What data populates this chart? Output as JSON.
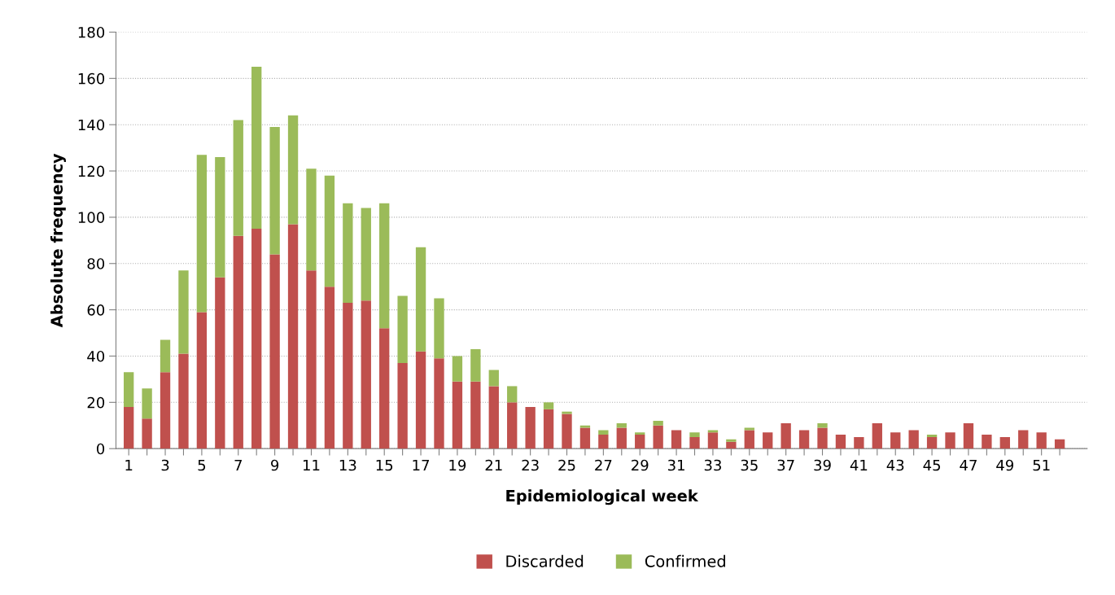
{
  "chart_data": {
    "type": "bar",
    "stacked": true,
    "xlabel": "Epidemiological week",
    "ylabel": "Absolute frequency",
    "categories": [
      "1",
      null,
      "3",
      null,
      "5",
      null,
      "7",
      null,
      "9",
      null,
      "11",
      null,
      "13",
      null,
      "15",
      null,
      "17",
      null,
      "19",
      null,
      "21",
      null,
      "23",
      null,
      "25",
      null,
      "27",
      null,
      "29",
      null,
      "31",
      null,
      "33",
      null,
      "35",
      null,
      "37",
      null,
      "39",
      null,
      "41",
      null,
      "43",
      null,
      "45",
      null,
      "47",
      null,
      "49",
      null,
      "51",
      null
    ],
    "series": [
      {
        "name": "Discarded",
        "color": "#c0504d",
        "values": [
          18,
          13,
          33,
          41,
          59,
          74,
          92,
          95,
          84,
          97,
          77,
          70,
          63,
          64,
          52,
          37,
          42,
          39,
          29,
          29,
          27,
          20,
          18,
          17,
          15,
          9,
          6,
          9,
          6,
          10,
          8,
          5,
          7,
          3,
          8,
          7,
          11,
          8,
          9,
          6,
          5,
          11,
          7,
          8,
          5,
          7,
          11,
          6,
          5,
          8,
          7,
          4
        ]
      },
      {
        "name": "Confirmed",
        "color": "#9bbb59",
        "values": [
          15,
          13,
          14,
          36,
          68,
          52,
          50,
          70,
          55,
          47,
          44,
          48,
          43,
          40,
          54,
          29,
          45,
          26,
          11,
          14,
          7,
          7,
          0,
          3,
          1,
          1,
          2,
          2,
          1,
          2,
          0,
          2,
          1,
          1,
          1,
          0,
          0,
          0,
          2,
          0,
          0,
          0,
          0,
          0,
          1,
          0,
          0,
          0,
          0,
          0,
          0,
          0
        ]
      }
    ],
    "ylim": [
      0,
      180
    ],
    "yticks": [
      0,
      20,
      40,
      60,
      80,
      100,
      120,
      140,
      160,
      180
    ],
    "grid": "y",
    "legend": "bottom"
  }
}
